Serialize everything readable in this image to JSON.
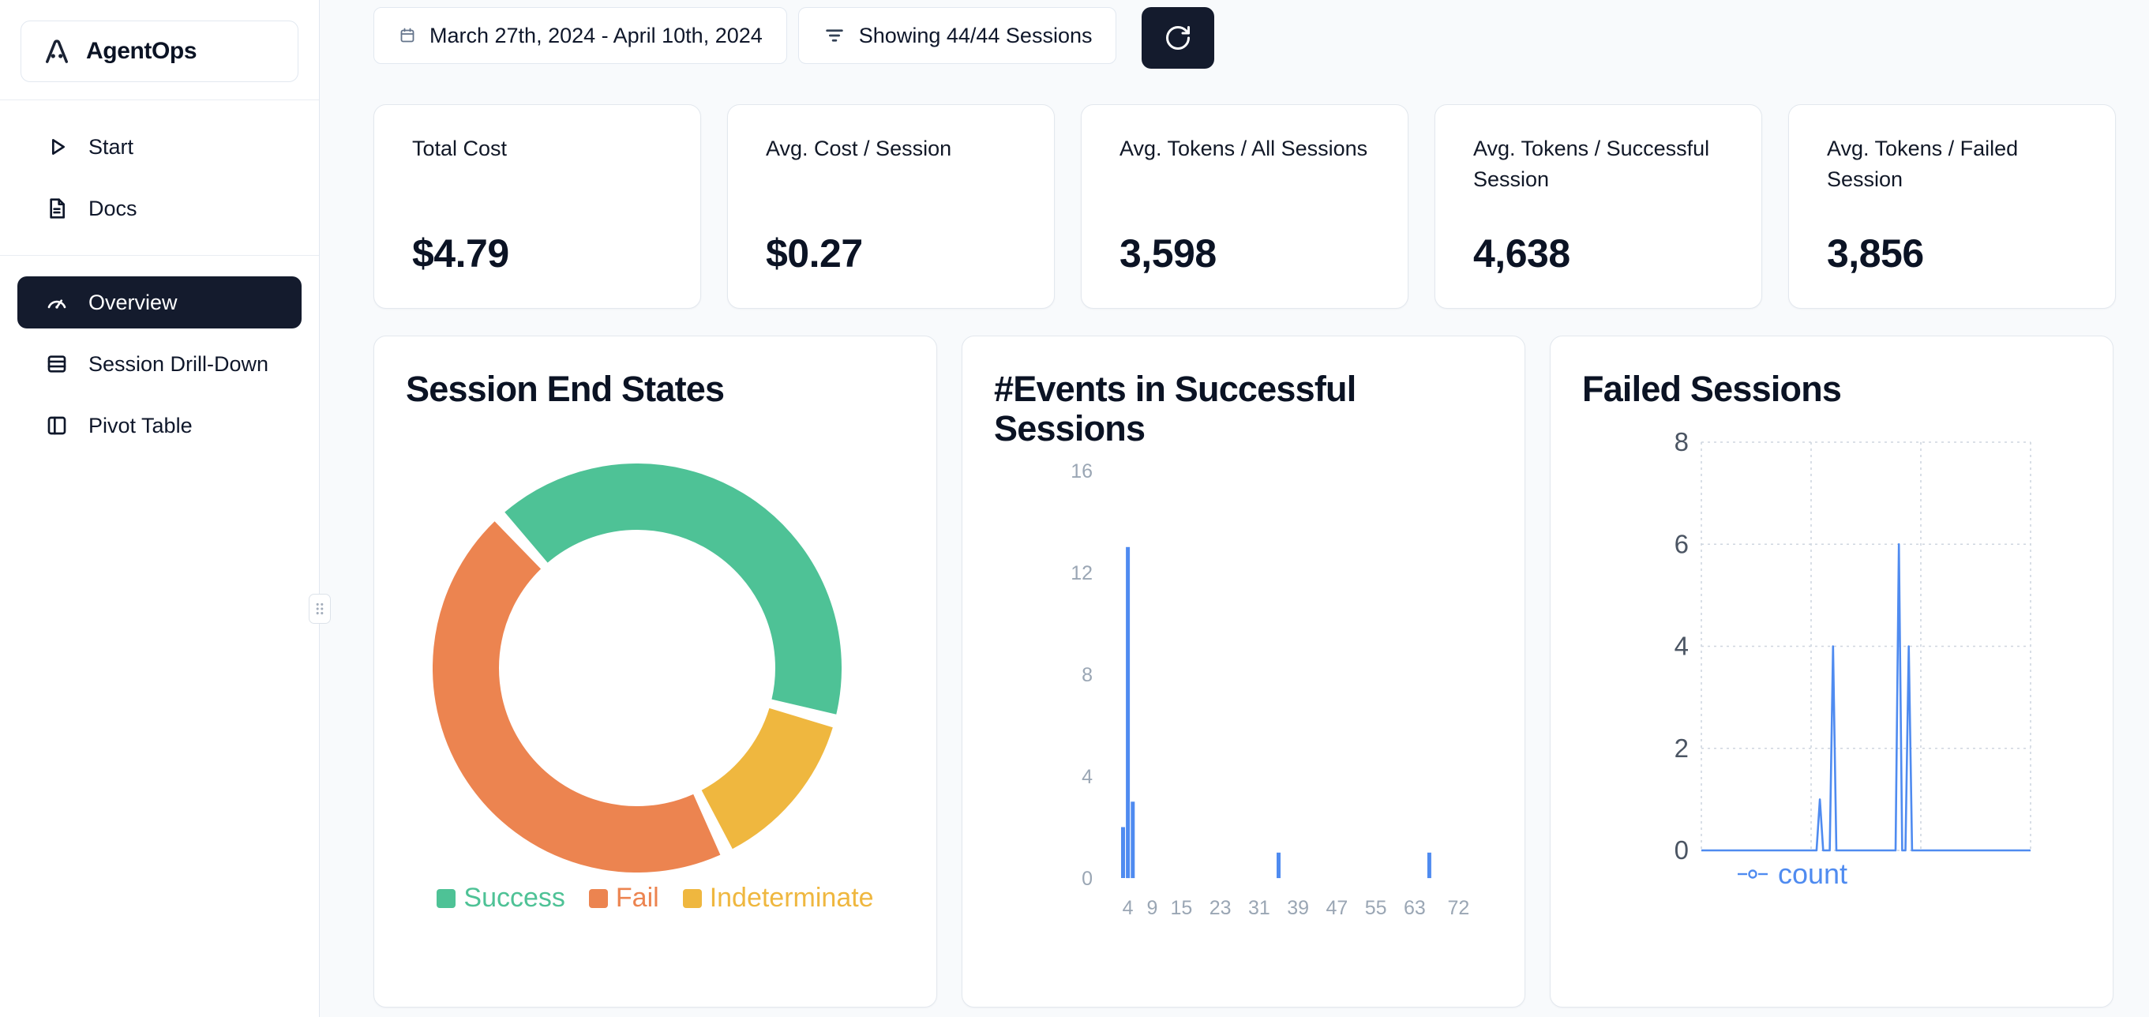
{
  "app": {
    "name": "AgentOps"
  },
  "sidebar": {
    "items": [
      {
        "label": "Start",
        "icon": "play-icon"
      },
      {
        "label": "Docs",
        "icon": "docs-icon"
      },
      {
        "label": "Overview",
        "icon": "gauge-icon",
        "active": true
      },
      {
        "label": "Session Drill-Down",
        "icon": "rows-icon"
      },
      {
        "label": "Pivot Table",
        "icon": "pivot-icon"
      }
    ]
  },
  "toolbar": {
    "date_range": "March 27th, 2024 - April 10th, 2024",
    "filter_label": "Showing 44/44 Sessions",
    "refresh_icon": "refresh-icon"
  },
  "stats": [
    {
      "label": "Total Cost",
      "value": "$4.79"
    },
    {
      "label": "Avg. Cost / Session",
      "value": "$0.27"
    },
    {
      "label": "Avg. Tokens / All Sessions",
      "value": "3,598"
    },
    {
      "label": "Avg. Tokens / Successful Session",
      "value": "4,638"
    },
    {
      "label": "Avg. Tokens / Failed Session",
      "value": "3,856"
    }
  ],
  "colors": {
    "accent_dark": "#141b2d",
    "background": "#f8fafc",
    "card_border": "#e3e8ee",
    "chart_blue": "#4f8bf0",
    "success_green": "#4ec296",
    "fail_orange": "#ec8450",
    "indeterminate_yellow": "#efb73f"
  },
  "chart_data": [
    {
      "type": "pie",
      "donut": true,
      "title": "Session End States",
      "labels": [
        "Success",
        "Fail",
        "Indeterminate"
      ],
      "values": [
        18,
        20,
        6
      ],
      "colors": [
        "#4ec296",
        "#ec8450",
        "#efb73f"
      ],
      "start_angle_deg": 105,
      "direction": "counterclockwise",
      "legend_position": "bottom"
    },
    {
      "type": "bar",
      "title": "#Events in Successful Sessions",
      "bars": [
        {
          "x": 3,
          "count": 2
        },
        {
          "x": 4,
          "count": 13
        },
        {
          "x": 5,
          "count": 3
        },
        {
          "x": 35,
          "count": 1
        },
        {
          "x": 66,
          "count": 1
        }
      ],
      "xticks": [
        4,
        9,
        15,
        23,
        31,
        39,
        47,
        55,
        63,
        72
      ],
      "yticks": [
        0,
        4,
        8,
        12,
        16
      ],
      "xlim": [
        0,
        76
      ],
      "ylim": [
        0,
        16
      ],
      "bar_color": "#4f8bf0",
      "grid": false
    },
    {
      "type": "line",
      "title": "Failed Sessions",
      "series": [
        {
          "name": "count",
          "color": "#4f8bf0",
          "points": [
            [
              0,
              0
            ],
            [
              35,
              0
            ],
            [
              36,
              1
            ],
            [
              37,
              0
            ],
            [
              39,
              0
            ],
            [
              40,
              4
            ],
            [
              41,
              0
            ],
            [
              59,
              0
            ],
            [
              60,
              6
            ],
            [
              61,
              0
            ],
            [
              62,
              0
            ],
            [
              63,
              4
            ],
            [
              64,
              0
            ],
            [
              100,
              0
            ]
          ]
        }
      ],
      "yticks": [
        0,
        2,
        4,
        6,
        8
      ],
      "xlim": [
        0,
        100
      ],
      "ylim": [
        0,
        8
      ],
      "grid": "dashed",
      "legend_position": "bottom"
    }
  ]
}
